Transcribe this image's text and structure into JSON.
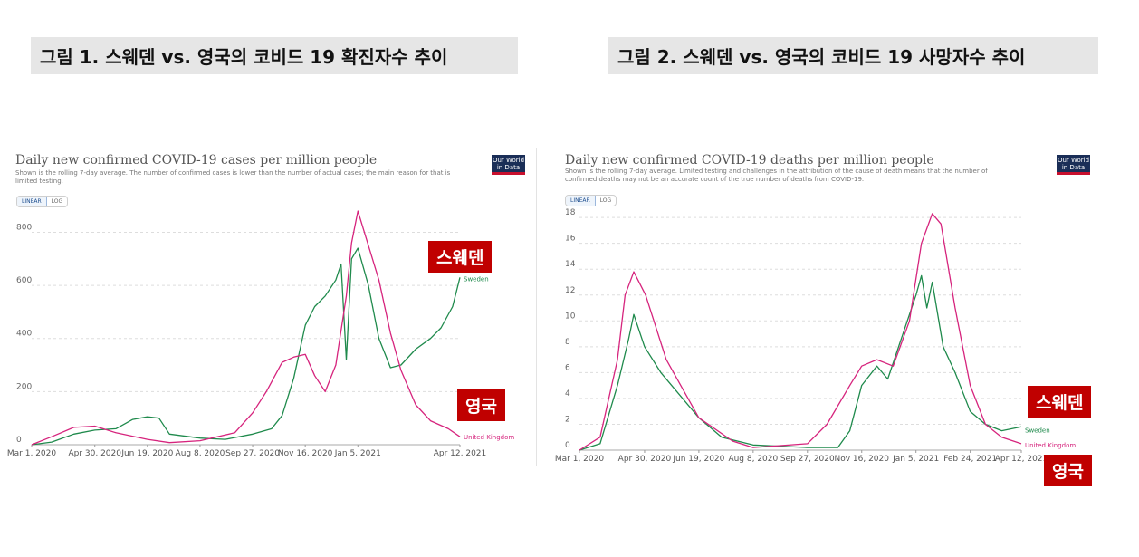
{
  "figure1": {
    "heading": "그림 1. 스웨덴 vs. 영국의 코비드 19 확진자수 추이"
  },
  "figure2": {
    "heading": "그림 2. 스웨덴 vs. 영국의 코비드 19 사망자수 추이"
  },
  "owid_logo_text": "Our World in Data",
  "toggles": {
    "linear": "LINEAR",
    "log": "LOG"
  },
  "badges": {
    "sweden": "스웨덴",
    "uk": "영국"
  },
  "colors": {
    "sweden": "#1f8a4c",
    "uk": "#d6247d",
    "badge_bg": "#c00000"
  },
  "chart_data": [
    {
      "type": "line",
      "title": "Daily new confirmed COVID-19 cases per million people",
      "subtitle": "Shown is the rolling 7-day average. The number of confirmed cases is lower than the number of actual cases; the main reason for that is limited testing.",
      "xlabel": "",
      "ylabel": "",
      "x_ticks": [
        "Mar 1, 2020",
        "Apr 30, 2020",
        "Jun 19, 2020",
        "Aug 8, 2020",
        "Sep 27, 2020",
        "Nov 16, 2020",
        "Jan 5, 2021",
        "Apr 12, 2021"
      ],
      "y_ticks": [
        0,
        200,
        400,
        600,
        800
      ],
      "ylim": [
        0,
        880
      ],
      "grid": true,
      "series": [
        {
          "name": "Sweden",
          "x": [
            "Mar 1, 2020",
            "Mar 20, 2020",
            "Apr 10, 2020",
            "Apr 30, 2020",
            "May 20, 2020",
            "Jun 5, 2020",
            "Jun 19, 2020",
            "Jun 30, 2020",
            "Jul 10, 2020",
            "Aug 8, 2020",
            "Sep 1, 2020",
            "Sep 27, 2020",
            "Oct 15, 2020",
            "Oct 25, 2020",
            "Nov 5, 2020",
            "Nov 16, 2020",
            "Nov 25, 2020",
            "Dec 5, 2020",
            "Dec 15, 2020",
            "Dec 20, 2020",
            "Dec 25, 2020",
            "Dec 30, 2020",
            "Jan 5, 2021",
            "Jan 15, 2021",
            "Jan 25, 2021",
            "Feb 5, 2021",
            "Feb 15, 2021",
            "Mar 1, 2021",
            "Mar 15, 2021",
            "Mar 25, 2021",
            "Apr 5, 2021",
            "Apr 12, 2021"
          ],
          "y": [
            0,
            10,
            40,
            55,
            60,
            95,
            105,
            100,
            40,
            25,
            20,
            40,
            60,
            110,
            250,
            450,
            520,
            560,
            620,
            680,
            320,
            700,
            740,
            600,
            400,
            290,
            300,
            360,
            400,
            440,
            520,
            630
          ]
        },
        {
          "name": "United Kingdom",
          "x": [
            "Mar 1, 2020",
            "Mar 20, 2020",
            "Apr 10, 2020",
            "Apr 30, 2020",
            "May 20, 2020",
            "Jun 19, 2020",
            "Jul 10, 2020",
            "Aug 8, 2020",
            "Sep 10, 2020",
            "Sep 27, 2020",
            "Oct 10, 2020",
            "Oct 25, 2020",
            "Nov 5, 2020",
            "Nov 16, 2020",
            "Nov 25, 2020",
            "Dec 5, 2020",
            "Dec 15, 2020",
            "Dec 25, 2020",
            "Dec 30, 2020",
            "Jan 5, 2021",
            "Jan 15, 2021",
            "Jan 25, 2021",
            "Feb 5, 2021",
            "Feb 15, 2021",
            "Mar 1, 2021",
            "Mar 15, 2021",
            "Apr 1, 2021",
            "Apr 12, 2021"
          ],
          "y": [
            0,
            30,
            65,
            70,
            45,
            20,
            8,
            15,
            45,
            120,
            200,
            310,
            330,
            340,
            260,
            200,
            300,
            560,
            760,
            880,
            750,
            620,
            420,
            280,
            150,
            90,
            60,
            30
          ]
        }
      ],
      "end_labels": [
        "Sweden",
        "United Kingdom"
      ]
    },
    {
      "type": "line",
      "title": "Daily new confirmed COVID-19 deaths per million people",
      "subtitle": "Shown is the rolling 7-day average. Limited testing and challenges in the attribution of the cause of death means that the number of confirmed deaths may not be an accurate count of the true number of deaths from COVID-19.",
      "xlabel": "",
      "ylabel": "",
      "x_ticks": [
        "Mar 1, 2020",
        "Apr 30, 2020",
        "Jun 19, 2020",
        "Aug 8, 2020",
        "Sep 27, 2020",
        "Nov 16, 2020",
        "Jan 5, 2021",
        "Feb 24, 2021",
        "Apr 12, 2021"
      ],
      "y_ticks": [
        0,
        2,
        4,
        6,
        8,
        10,
        12,
        14,
        16,
        18
      ],
      "ylim": [
        0,
        18.5
      ],
      "grid": true,
      "series": [
        {
          "name": "Sweden",
          "x": [
            "Mar 1, 2020",
            "Mar 20, 2020",
            "Apr 5, 2020",
            "Apr 15, 2020",
            "Apr 20, 2020",
            "Apr 30, 2020",
            "May 15, 2020",
            "May 30, 2020",
            "Jun 19, 2020",
            "Jul 10, 2020",
            "Aug 8, 2020",
            "Sep 27, 2020",
            "Oct 25, 2020",
            "Nov 5, 2020",
            "Nov 16, 2020",
            "Nov 30, 2020",
            "Dec 10, 2020",
            "Dec 20, 2020",
            "Dec 28, 2020",
            "Jan 5, 2021",
            "Jan 10, 2021",
            "Jan 15, 2021",
            "Jan 20, 2021",
            "Jan 30, 2021",
            "Feb 10, 2021",
            "Feb 24, 2021",
            "Mar 10, 2021",
            "Mar 25, 2021",
            "Apr 12, 2021"
          ],
          "y": [
            0,
            0.5,
            5,
            8.5,
            10.5,
            8,
            6,
            4.5,
            2.5,
            1,
            0.4,
            0.2,
            0.2,
            1.5,
            5,
            6.5,
            5.5,
            8,
            10,
            12,
            13.5,
            11,
            13,
            8,
            6,
            3,
            2,
            1.5,
            1.8
          ]
        },
        {
          "name": "United Kingdom",
          "x": [
            "Mar 1, 2020",
            "Mar 20, 2020",
            "Apr 5, 2020",
            "Apr 12, 2020",
            "Apr 20, 2020",
            "May 1, 2020",
            "May 20, 2020",
            "Jun 19, 2020",
            "Jul 20, 2020",
            "Aug 8, 2020",
            "Sep 27, 2020",
            "Oct 15, 2020",
            "Nov 5, 2020",
            "Nov 16, 2020",
            "Nov 30, 2020",
            "Dec 15, 2020",
            "Dec 30, 2020",
            "Jan 10, 2021",
            "Jan 20, 2021",
            "Jan 28, 2021",
            "Feb 10, 2021",
            "Feb 24, 2021",
            "Mar 10, 2021",
            "Mar 25, 2021",
            "Apr 12, 2021"
          ],
          "y": [
            0,
            1,
            7,
            12,
            13.8,
            12,
            7,
            2.5,
            0.7,
            0.2,
            0.5,
            2,
            5,
            6.5,
            7,
            6.5,
            10,
            16,
            18.3,
            17.5,
            11,
            5,
            2,
            1,
            0.5
          ]
        }
      ],
      "end_labels": [
        "Sweden",
        "United Kingdom"
      ]
    }
  ]
}
